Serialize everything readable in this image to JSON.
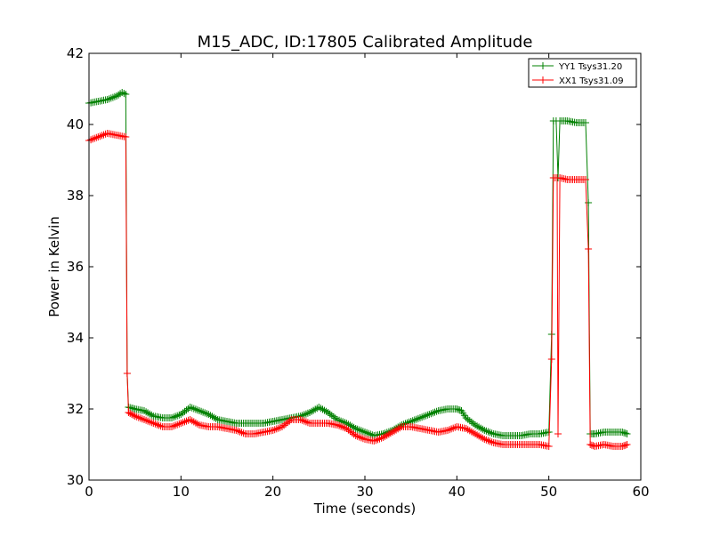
{
  "chart_data": {
    "type": "line",
    "title": "M15_ADC, ID:17805 Calibrated Amplitude",
    "xlabel": "Time (seconds)",
    "ylabel": "Power in Kelvin",
    "xlim": [
      0,
      60
    ],
    "ylim": [
      30,
      42
    ],
    "xticks": [
      0,
      10,
      20,
      30,
      40,
      50,
      60
    ],
    "yticks": [
      30,
      32,
      34,
      36,
      38,
      40,
      42
    ],
    "grid": false,
    "legend_position": "top-right",
    "marker": "+",
    "series": [
      {
        "name": "YY1 Tsys31.20",
        "color": "#008000",
        "points": [
          [
            0,
            40.6
          ],
          [
            1,
            40.65
          ],
          [
            2,
            40.7
          ],
          [
            3,
            40.8
          ],
          [
            3.6,
            40.9
          ],
          [
            4.0,
            40.85
          ],
          [
            4.15,
            33.0
          ],
          [
            4.3,
            32.05
          ],
          [
            5,
            32.0
          ],
          [
            6,
            31.95
          ],
          [
            7,
            31.8
          ],
          [
            8,
            31.75
          ],
          [
            9,
            31.75
          ],
          [
            10,
            31.85
          ],
          [
            11,
            32.05
          ],
          [
            12,
            31.95
          ],
          [
            13,
            31.85
          ],
          [
            14,
            31.7
          ],
          [
            15,
            31.65
          ],
          [
            16,
            31.6
          ],
          [
            17,
            31.6
          ],
          [
            18,
            31.6
          ],
          [
            19,
            31.6
          ],
          [
            20,
            31.65
          ],
          [
            21,
            31.7
          ],
          [
            22,
            31.75
          ],
          [
            23,
            31.8
          ],
          [
            24,
            31.9
          ],
          [
            25,
            32.05
          ],
          [
            26,
            31.9
          ],
          [
            27,
            31.7
          ],
          [
            28,
            31.6
          ],
          [
            29,
            31.45
          ],
          [
            30,
            31.35
          ],
          [
            31,
            31.25
          ],
          [
            32,
            31.3
          ],
          [
            33,
            31.4
          ],
          [
            34,
            31.55
          ],
          [
            35,
            31.65
          ],
          [
            36,
            31.75
          ],
          [
            37,
            31.85
          ],
          [
            38,
            31.95
          ],
          [
            39,
            32.0
          ],
          [
            40,
            32.0
          ],
          [
            40.5,
            31.95
          ],
          [
            41,
            31.75
          ],
          [
            42,
            31.55
          ],
          [
            43,
            31.4
          ],
          [
            44,
            31.3
          ],
          [
            45,
            31.25
          ],
          [
            46,
            31.25
          ],
          [
            47,
            31.25
          ],
          [
            48,
            31.3
          ],
          [
            49,
            31.3
          ],
          [
            50,
            31.35
          ],
          [
            50.3,
            34.1
          ],
          [
            50.5,
            40.1
          ],
          [
            50.8,
            40.1
          ],
          [
            51.0,
            38.5
          ],
          [
            51.2,
            40.1
          ],
          [
            52,
            40.1
          ],
          [
            53,
            40.05
          ],
          [
            54,
            40.05
          ],
          [
            54.3,
            37.8
          ],
          [
            54.5,
            31.3
          ],
          [
            55,
            31.3
          ],
          [
            56,
            31.35
          ],
          [
            57,
            31.35
          ],
          [
            58,
            31.35
          ],
          [
            58.5,
            31.3
          ]
        ]
      },
      {
        "name": "XX1 Tsys31.09",
        "color": "#ff0000",
        "points": [
          [
            0,
            39.55
          ],
          [
            1,
            39.65
          ],
          [
            2,
            39.75
          ],
          [
            3,
            39.7
          ],
          [
            4.0,
            39.65
          ],
          [
            4.15,
            33.0
          ],
          [
            4.3,
            31.9
          ],
          [
            5,
            31.8
          ],
          [
            6,
            31.7
          ],
          [
            7,
            31.6
          ],
          [
            8,
            31.5
          ],
          [
            9,
            31.5
          ],
          [
            10,
            31.6
          ],
          [
            11,
            31.7
          ],
          [
            12,
            31.55
          ],
          [
            13,
            31.5
          ],
          [
            14,
            31.5
          ],
          [
            15,
            31.45
          ],
          [
            16,
            31.4
          ],
          [
            17,
            31.3
          ],
          [
            18,
            31.3
          ],
          [
            19,
            31.35
          ],
          [
            20,
            31.4
          ],
          [
            21,
            31.5
          ],
          [
            22,
            31.7
          ],
          [
            23,
            31.7
          ],
          [
            24,
            31.6
          ],
          [
            25,
            31.6
          ],
          [
            26,
            31.6
          ],
          [
            27,
            31.55
          ],
          [
            28,
            31.45
          ],
          [
            29,
            31.25
          ],
          [
            30,
            31.15
          ],
          [
            31,
            31.1
          ],
          [
            32,
            31.2
          ],
          [
            33,
            31.35
          ],
          [
            34,
            31.5
          ],
          [
            35,
            31.5
          ],
          [
            36,
            31.45
          ],
          [
            37,
            31.4
          ],
          [
            38,
            31.35
          ],
          [
            39,
            31.4
          ],
          [
            40,
            31.5
          ],
          [
            41,
            31.45
          ],
          [
            42,
            31.3
          ],
          [
            43,
            31.15
          ],
          [
            44,
            31.05
          ],
          [
            45,
            31.0
          ],
          [
            46,
            31.0
          ],
          [
            47,
            31.0
          ],
          [
            48,
            31.0
          ],
          [
            49,
            31.0
          ],
          [
            50,
            30.95
          ],
          [
            50.3,
            33.4
          ],
          [
            50.5,
            38.5
          ],
          [
            50.9,
            38.5
          ],
          [
            51.0,
            31.3
          ],
          [
            51.2,
            38.5
          ],
          [
            52,
            38.45
          ],
          [
            53,
            38.45
          ],
          [
            54,
            38.45
          ],
          [
            54.3,
            36.5
          ],
          [
            54.5,
            31.0
          ],
          [
            55,
            30.95
          ],
          [
            56,
            31.0
          ],
          [
            57,
            30.95
          ],
          [
            58,
            30.95
          ],
          [
            58.5,
            31.0
          ]
        ]
      }
    ]
  }
}
